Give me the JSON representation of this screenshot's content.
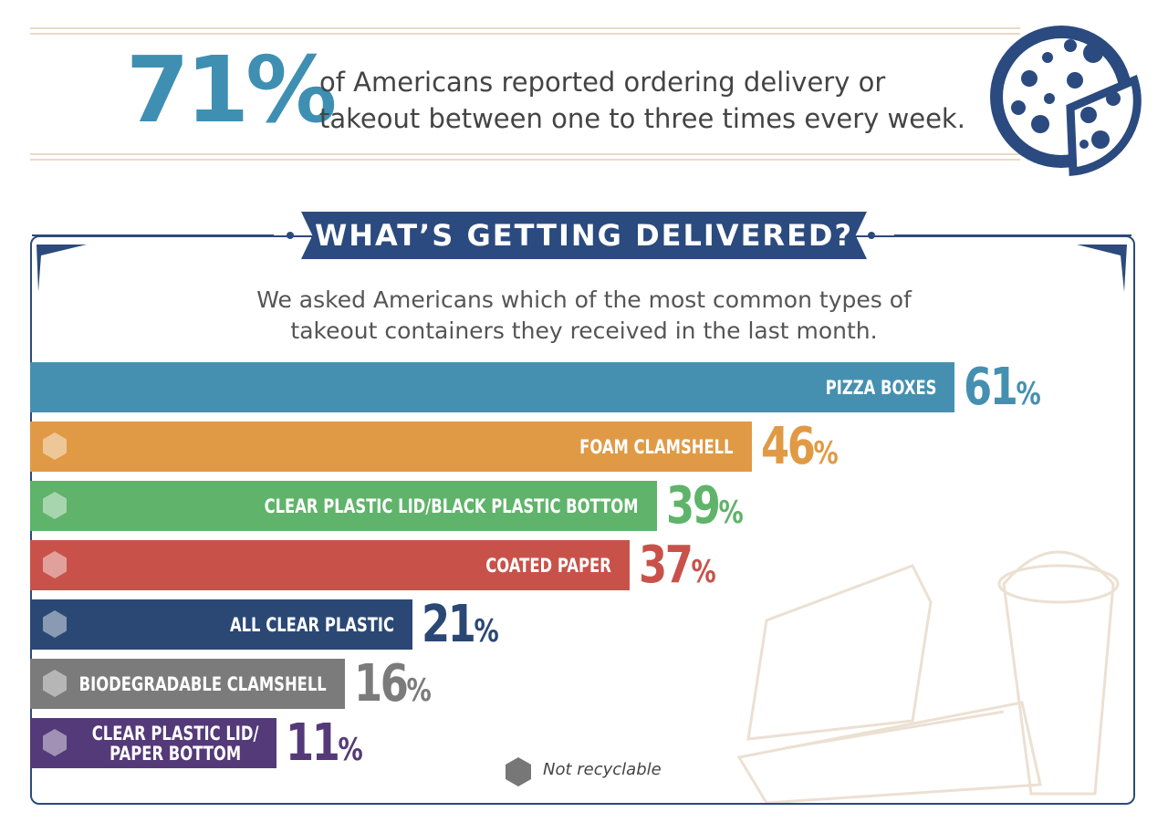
{
  "stat": {
    "label": "71%",
    "text": "of Americans reported ordering delivery or\ntakeout between one to three times every week."
  },
  "chart_data": {
    "type": "bar",
    "orientation": "horizontal",
    "title": "WHAT’S GETTING DELIVERED?",
    "subtitle": "We asked Americans which of the most common types of takeout containers they received in the last month.",
    "categories": [
      "PIZZA BOXES",
      "FOAM CLAMSHELL",
      "CLEAR PLASTIC LID/BLACK PLASTIC BOTTOM",
      "COATED PAPER",
      "ALL CLEAR PLASTIC",
      "BIODEGRADABLE CLAMSHELL",
      "CLEAR PLASTIC LID/\nPAPER BOTTOM"
    ],
    "values": [
      61,
      46,
      39,
      37,
      21,
      16,
      11
    ],
    "value_labels": [
      "61%",
      "46%",
      "39%",
      "37%",
      "21%",
      "16%",
      "11%"
    ],
    "colors": [
      "#4590b1",
      "#e09a45",
      "#5fb36a",
      "#c8524a",
      "#2b4875",
      "#7b7b7b",
      "#543a78"
    ],
    "not_recyclable": [
      false,
      true,
      true,
      true,
      true,
      true,
      true
    ],
    "legend": {
      "label": "Not recyclable",
      "color": "#777777"
    }
  }
}
